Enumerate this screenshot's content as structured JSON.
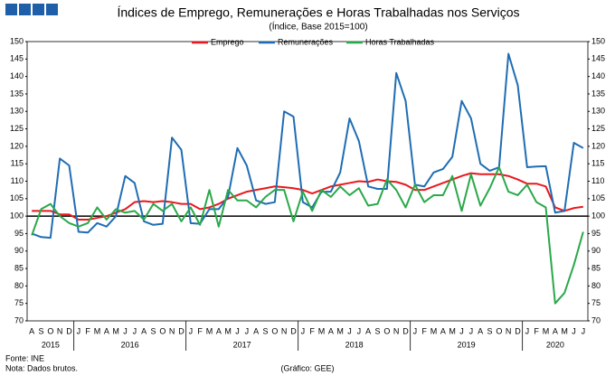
{
  "chart_data": {
    "type": "line",
    "title": "Índices de Emprego, Remunerações e Horas Trabalhadas nos Serviços",
    "subtitle": "(Índice, Base 2015=100)",
    "categories": [
      "A",
      "S",
      "O",
      "N",
      "D",
      "J",
      "F",
      "M",
      "A",
      "M",
      "J",
      "J",
      "A",
      "S",
      "O",
      "N",
      "D",
      "J",
      "F",
      "M",
      "A",
      "M",
      "J",
      "J",
      "A",
      "S",
      "O",
      "N",
      "D",
      "J",
      "F",
      "M",
      "A",
      "M",
      "J",
      "J",
      "A",
      "S",
      "O",
      "N",
      "D",
      "J",
      "F",
      "M",
      "A",
      "M",
      "J",
      "J",
      "A",
      "S",
      "O",
      "N",
      "D",
      "J",
      "F",
      "M",
      "A",
      "M",
      "J",
      "J"
    ],
    "years": [
      "2015",
      "2016",
      "2017",
      "2018",
      "2019",
      "2020"
    ],
    "series": [
      {
        "name": "Emprego",
        "color": "#e8191e",
        "values": [
          101.5,
          101.5,
          101.5,
          100.5,
          100.5,
          99,
          99,
          99.5,
          100,
          101,
          102,
          104,
          104.3,
          104,
          104.3,
          104,
          103.5,
          103.5,
          102,
          102.5,
          103.5,
          105,
          106,
          107,
          107.5,
          108,
          108.5,
          108.3,
          108,
          107.5,
          106.5,
          107.5,
          108.5,
          109,
          109.5,
          110,
          109.8,
          110.5,
          110,
          109.8,
          109,
          107.5,
          107.5,
          108.5,
          109.5,
          110.5,
          111.5,
          112.3,
          112,
          112,
          112,
          111.5,
          110.5,
          109.3,
          109.3,
          108.5,
          102.5,
          101.5,
          102.3,
          102.7
        ]
      },
      {
        "name": "Remunerações",
        "color": "#1f6db3",
        "values": [
          95,
          94,
          93.8,
          116.5,
          114.5,
          95.5,
          95.3,
          98,
          97,
          100,
          111.5,
          109.5,
          98.5,
          97.5,
          97.8,
          122.5,
          119,
          98,
          97.8,
          102,
          102,
          105.5,
          119.5,
          114.5,
          104.5,
          103.5,
          104,
          130,
          128.5,
          104,
          102.5,
          107,
          107,
          112.5,
          128,
          121.5,
          108.5,
          107.8,
          107.8,
          141,
          133,
          109,
          108.5,
          112.5,
          113.5,
          117,
          133,
          128,
          115,
          113,
          114,
          146.5,
          137.5,
          114,
          114.2,
          114.3,
          101,
          101.5,
          121,
          119.5
        ]
      },
      {
        "name": "Horas Trabalhadas",
        "color": "#2aa84a",
        "values": [
          94.5,
          102,
          103.5,
          100,
          98,
          97,
          98,
          102.5,
          99,
          102,
          101,
          101.5,
          99,
          103.5,
          101.5,
          103.5,
          98.5,
          102.5,
          97.5,
          107.5,
          97,
          107.5,
          104.5,
          104.5,
          102.5,
          105.5,
          107.5,
          107.5,
          98.5,
          107,
          101.5,
          107.5,
          105.5,
          108.5,
          106,
          108,
          103,
          103.5,
          110.5,
          107.5,
          102.5,
          109,
          104,
          106,
          106,
          111.5,
          101.5,
          112,
          103,
          108,
          114,
          107,
          106,
          109,
          104,
          102.5,
          75,
          78,
          86,
          95.5
        ]
      }
    ],
    "ylim": [
      70,
      150
    ],
    "yticks": [
      70,
      75,
      80,
      85,
      90,
      95,
      100,
      105,
      110,
      115,
      120,
      125,
      130,
      135,
      140,
      145,
      150
    ],
    "reference_line": 100,
    "source": "Fonte: INE",
    "note": "Nota: Dados brutos.",
    "credit": "(Gráfico: GEE)"
  }
}
